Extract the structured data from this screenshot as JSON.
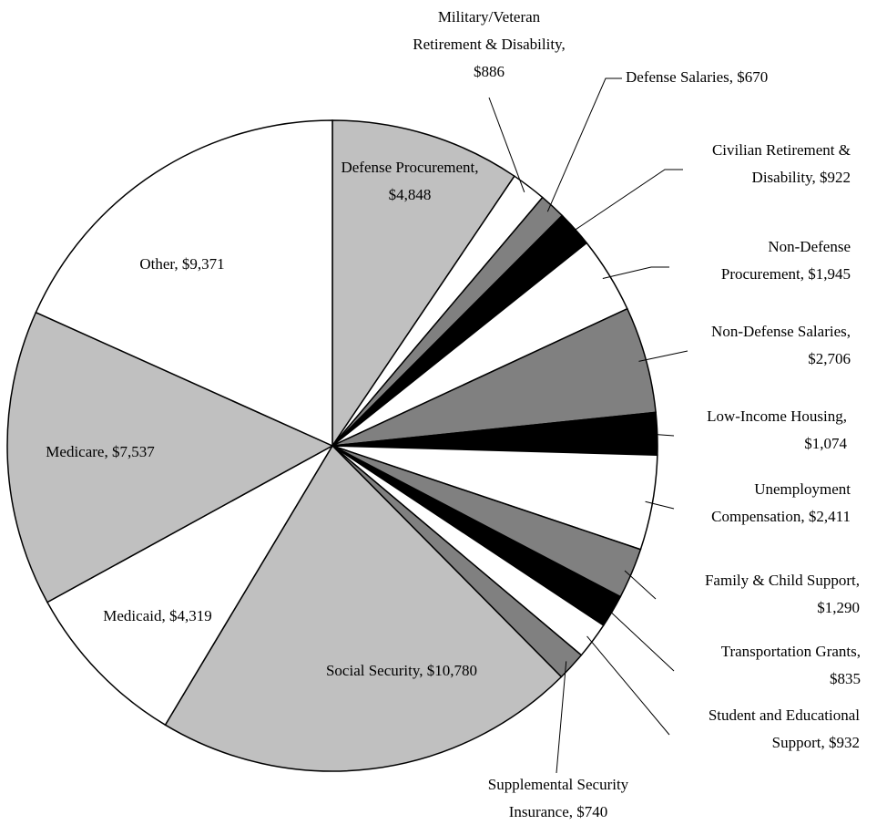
{
  "chart_data": {
    "type": "pie",
    "values": [
      4848,
      886,
      670,
      922,
      1945,
      2706,
      1074,
      2411,
      1290,
      835,
      932,
      740,
      10780,
      4319,
      7537,
      9371
    ],
    "value_labels": [
      [
        "Defense Procurement,",
        "$4,848"
      ],
      [
        "Military/Veteran",
        "Retirement & Disability,",
        "$886"
      ],
      [
        "Defense Salaries, $670"
      ],
      [
        "Civilian Retirement &",
        "Disability, $922"
      ],
      [
        "Non-Defense",
        "Procurement, $1,945"
      ],
      [
        "Non-Defense Salaries,",
        "$2,706"
      ],
      [
        "Low-Income Housing,",
        "$1,074"
      ],
      [
        "Unemployment",
        "Compensation, $2,411"
      ],
      [
        "Family & Child Support,",
        "$1,290"
      ],
      [
        "Transportation Grants,",
        "$835"
      ],
      [
        "Student and Educational",
        "Support, $932"
      ],
      [
        "Supplemental Security",
        "Insurance, $740"
      ],
      [
        "Social Security, $10,780"
      ],
      [
        "Medicaid, $4,319"
      ],
      [
        "Medicare, $7,537"
      ],
      [
        "Other, $9,371"
      ]
    ],
    "colors": [
      "#c0c0c0",
      "#ffffff",
      "#808080",
      "#000000",
      "#ffffff",
      "#808080",
      "#000000",
      "#ffffff",
      "#808080",
      "#000000",
      "#ffffff",
      "#808080",
      "#c0c0c0",
      "#ffffff",
      "#c0c0c0",
      "#ffffff"
    ]
  }
}
